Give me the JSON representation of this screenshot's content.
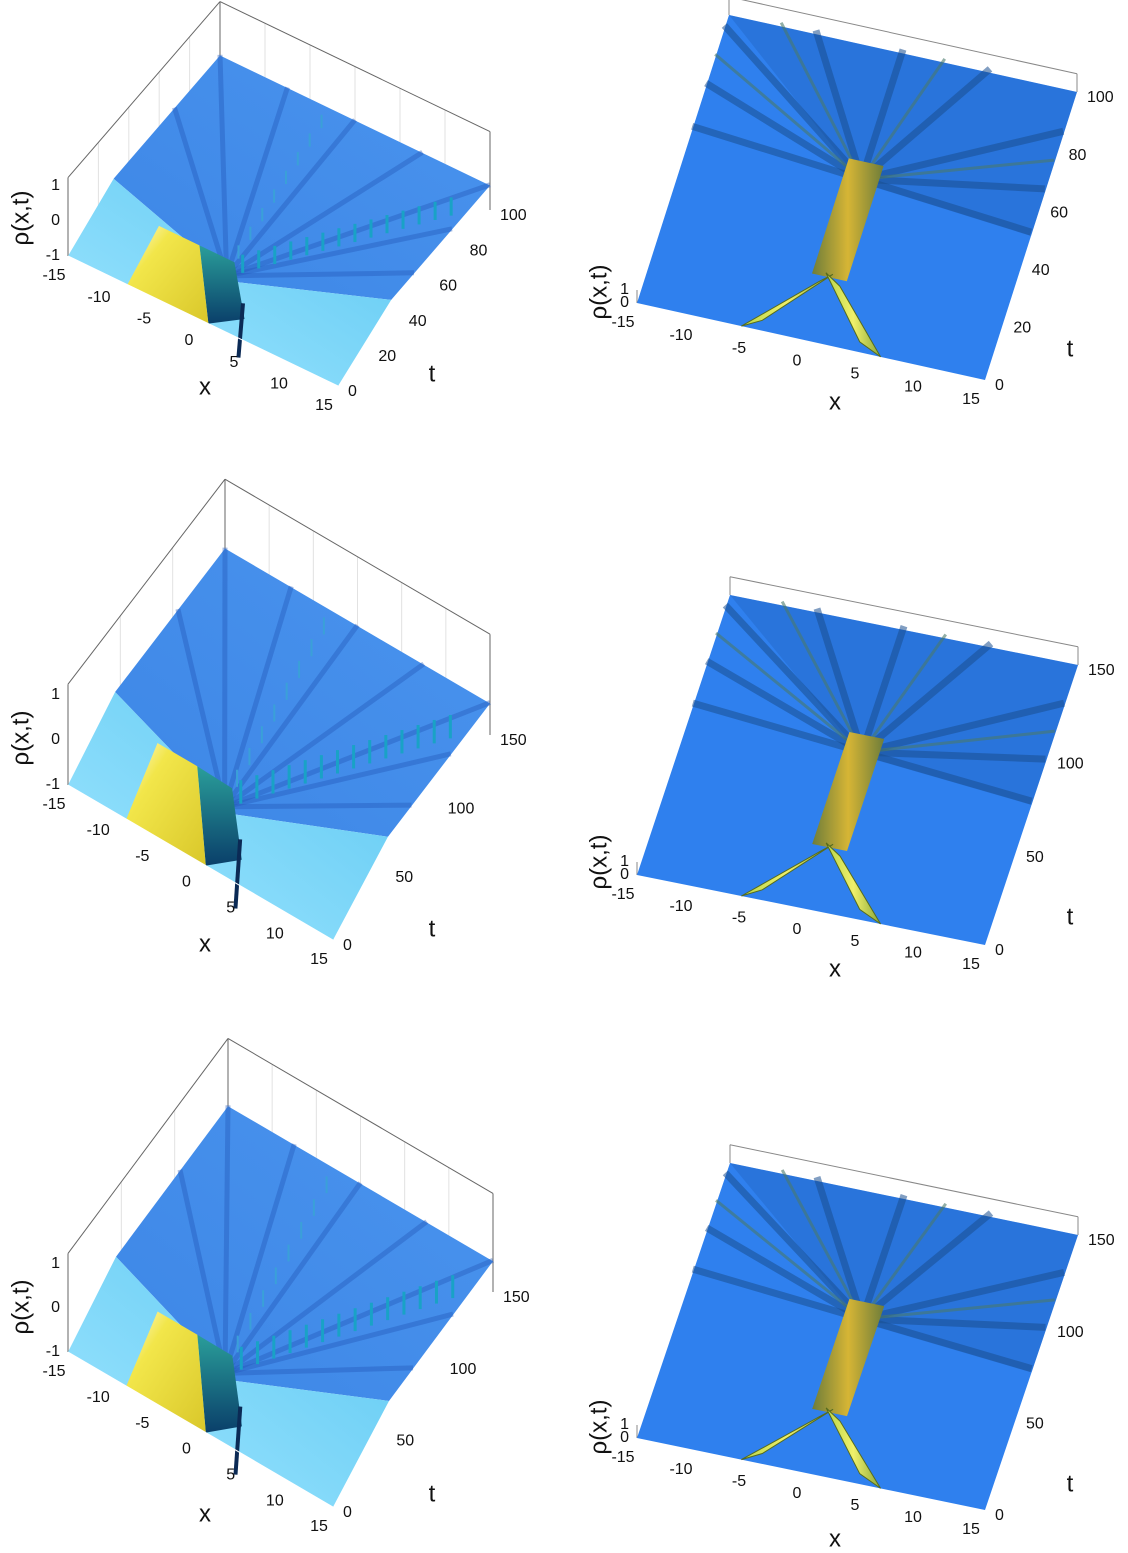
{
  "panels": [
    {
      "xlabel": "x",
      "tlabel": "t",
      "zlabel": "ρ(x,t)",
      "xticks": [
        -15,
        -10,
        -5,
        0,
        5,
        10,
        15
      ],
      "tticks": [
        0,
        20,
        40,
        60,
        80,
        100
      ],
      "zticks": [
        -1,
        0,
        1
      ]
    },
    {
      "xlabel": "x",
      "tlabel": "t",
      "zlabel": "ρ(x,t)",
      "xticks": [
        -15,
        -10,
        -5,
        0,
        5,
        10,
        15
      ],
      "tticks": [
        0,
        20,
        40,
        60,
        80,
        100
      ],
      "zticks": [
        0,
        1
      ]
    },
    {
      "xlabel": "x",
      "tlabel": "t",
      "zlabel": "ρ(x,t)",
      "xticks": [
        -15,
        -10,
        -5,
        0,
        5,
        10,
        15
      ],
      "tticks": [
        0,
        50,
        100,
        150
      ],
      "zticks": [
        -1,
        0,
        1
      ]
    },
    {
      "xlabel": "x",
      "tlabel": "t",
      "zlabel": "ρ(x,t)",
      "xticks": [
        -15,
        -10,
        -5,
        0,
        5,
        10,
        15
      ],
      "tticks": [
        0,
        50,
        100,
        150
      ],
      "zticks": [
        0,
        1
      ]
    },
    {
      "xlabel": "x",
      "tlabel": "t",
      "zlabel": "ρ(x,t)",
      "xticks": [
        -15,
        -10,
        -5,
        0,
        5,
        10,
        15
      ],
      "tticks": [
        0,
        50,
        100,
        150
      ],
      "zticks": [
        -1,
        0,
        1
      ]
    },
    {
      "xlabel": "x",
      "tlabel": "t",
      "zlabel": "ρ(x,t)",
      "xticks": [
        -15,
        -10,
        -5,
        0,
        5,
        10,
        15
      ],
      "tticks": [
        0,
        50,
        100,
        150
      ],
      "zticks": [
        0,
        1
      ]
    }
  ]
}
